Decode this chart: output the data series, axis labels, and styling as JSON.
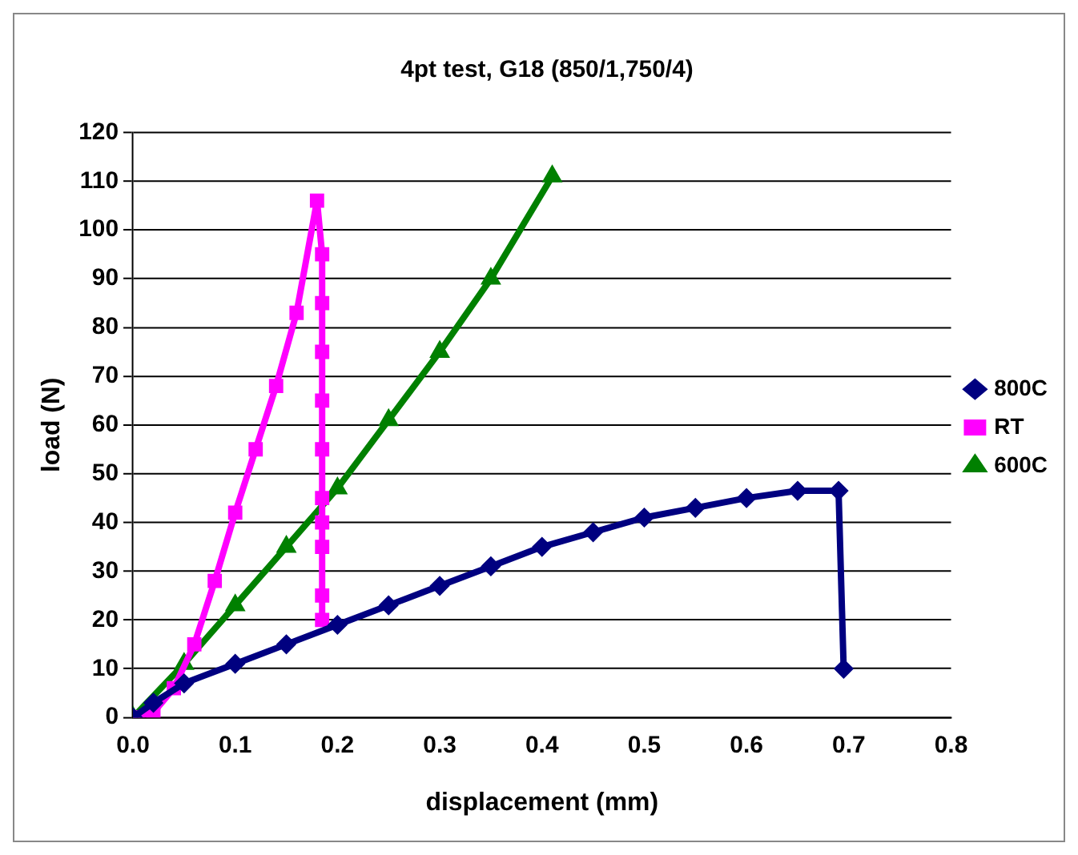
{
  "chart_data": {
    "type": "line",
    "title": "4pt test, G18 (850/1,750/4)",
    "xlabel": "displacement (mm)",
    "ylabel": "load (N)",
    "xlim": [
      0,
      0.8
    ],
    "xticks": [
      {
        "value": 0,
        "label": "0.0"
      },
      {
        "value": 0.1,
        "label": "0.1"
      },
      {
        "value": 0.2,
        "label": "0.2"
      },
      {
        "value": 0.3,
        "label": "0.3"
      },
      {
        "value": 0.4,
        "label": "0.4"
      },
      {
        "value": 0.5,
        "label": "0.5"
      },
      {
        "value": 0.6,
        "label": "0.6"
      },
      {
        "value": 0.7,
        "label": "0.7"
      },
      {
        "value": 0.8,
        "label": "0.8"
      }
    ],
    "ylim": [
      0,
      120
    ],
    "yticks": [
      0,
      10,
      20,
      30,
      40,
      50,
      60,
      70,
      80,
      90,
      100,
      110,
      120
    ],
    "grid": "y",
    "legend": "right",
    "series": [
      {
        "name": "800C",
        "color": "#000080",
        "marker": "diamond",
        "x": [
          0,
          0.02,
          0.05,
          0.1,
          0.15,
          0.2,
          0.25,
          0.3,
          0.35,
          0.4,
          0.45,
          0.5,
          0.55,
          0.6,
          0.65,
          0.69,
          0.695
        ],
        "values": [
          0,
          3,
          7,
          11,
          15,
          19,
          23,
          27,
          31,
          35,
          38,
          41,
          43,
          45,
          46.5,
          46.5,
          10
        ]
      },
      {
        "name": "RT",
        "color": "#ff00ff",
        "marker": "square",
        "x": [
          0,
          0.02,
          0.04,
          0.06,
          0.08,
          0.1,
          0.12,
          0.14,
          0.16,
          0.18,
          0.185,
          0.185,
          0.185,
          0.185,
          0.185,
          0.185,
          0.185,
          0.185,
          0.185,
          0.185
        ],
        "values": [
          0,
          1,
          6,
          15,
          28,
          42,
          55,
          68,
          83,
          106,
          95,
          85,
          75,
          65,
          55,
          45,
          40,
          35,
          25,
          20
        ]
      },
      {
        "name": "600C",
        "color": "#008000",
        "marker": "triangle",
        "x": [
          0,
          0.05,
          0.1,
          0.15,
          0.2,
          0.25,
          0.3,
          0.35,
          0.41
        ],
        "values": [
          0,
          11,
          23,
          35,
          47,
          61,
          75,
          90,
          111
        ]
      }
    ]
  }
}
